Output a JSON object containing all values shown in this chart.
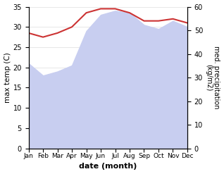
{
  "months": [
    "Jan",
    "Feb",
    "Mar",
    "Apr",
    "May",
    "Jun",
    "Jul",
    "Aug",
    "Sep",
    "Oct",
    "Nov",
    "Dec"
  ],
  "max_temp": [
    28.5,
    27.5,
    28.5,
    30.0,
    33.5,
    34.5,
    34.5,
    33.5,
    31.5,
    31.5,
    32.0,
    31.0
  ],
  "rainfall": [
    21.0,
    18.0,
    19.0,
    20.5,
    29.0,
    33.0,
    34.0,
    33.5,
    30.5,
    29.5,
    31.5,
    30.0
  ],
  "temp_ylim": [
    0,
    35
  ],
  "rain_ylim": [
    0,
    60
  ],
  "temp_yticks": [
    0,
    5,
    10,
    15,
    20,
    25,
    30,
    35
  ],
  "rain_yticks": [
    0,
    10,
    20,
    30,
    40,
    50,
    60
  ],
  "xlabel": "date (month)",
  "ylabel_left": "max temp (C)",
  "ylabel_right": "med. precipitation\n(kg/m2)",
  "fill_color": "#c8cef0",
  "line_color": "#cc3333",
  "background_color": "#ffffff",
  "fill_alpha": 1.0,
  "gridline_color": "#dddddd"
}
